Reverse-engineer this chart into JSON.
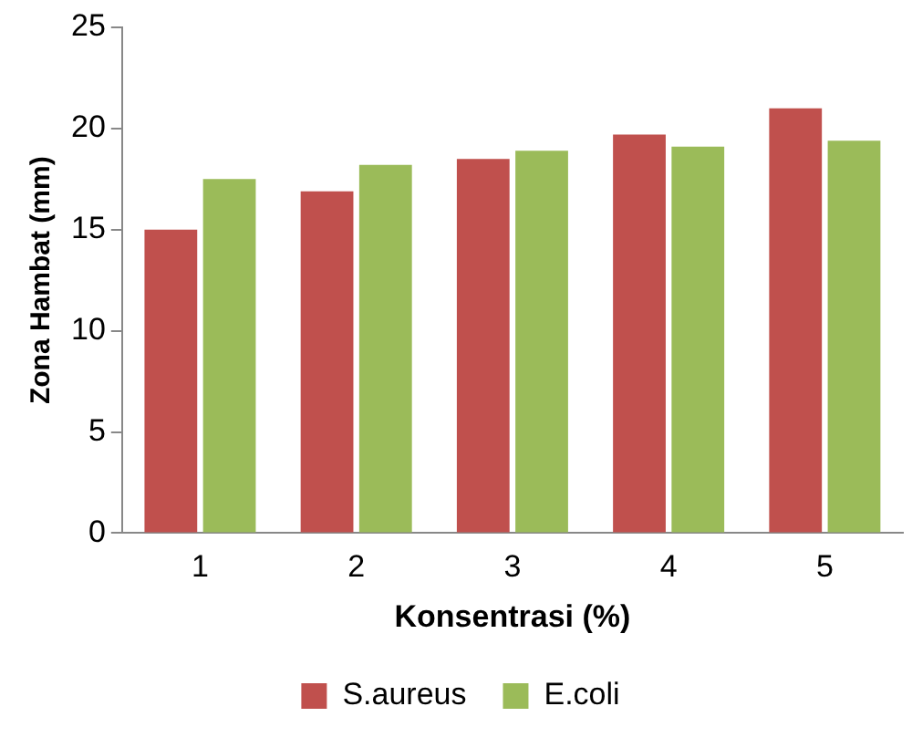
{
  "chart_data": {
    "type": "bar",
    "xlabel": "Konsentrasi (%)",
    "ylabel": "Zona Hambat (mm)",
    "categories": [
      "1",
      "2",
      "3",
      "4",
      "5"
    ],
    "series": [
      {
        "name": "S.aureus",
        "color": "#c0504d",
        "values": [
          15.0,
          16.9,
          18.5,
          19.7,
          21.0
        ]
      },
      {
        "name": "E.coli",
        "color": "#9bbb59",
        "values": [
          17.5,
          18.2,
          18.9,
          19.1,
          19.4
        ]
      }
    ],
    "ylim": [
      0,
      25
    ],
    "yticks": [
      0,
      5,
      10,
      15,
      20,
      25
    ],
    "grid": false,
    "legend": "bottom"
  }
}
